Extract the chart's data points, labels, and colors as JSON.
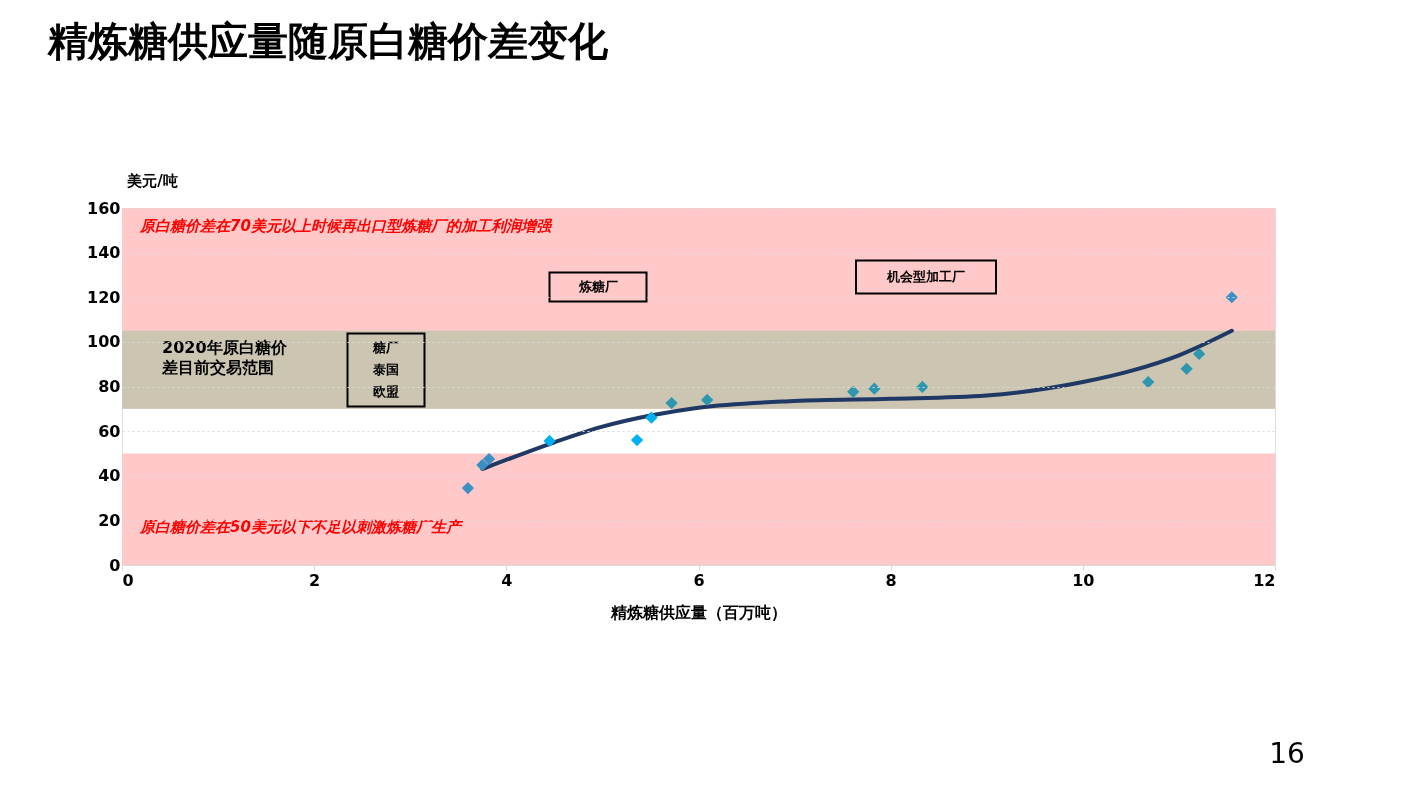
{
  "chart_data": {
    "type": "scatter",
    "title": "精炼糖供应量随原白糖价差变化",
    "xlabel": "精炼糖供应量（百万吨）",
    "ylabel": "美元/吨",
    "xlim": [
      0,
      12
    ],
    "xticks": [
      0,
      2,
      4,
      6,
      8,
      10,
      12
    ],
    "ylim": [
      0,
      160
    ],
    "yticks": [
      0,
      20,
      40,
      60,
      80,
      100,
      120,
      140,
      160
    ],
    "grid": "y",
    "marker": "diamond",
    "bands": [
      {
        "axis": "y",
        "from": 70,
        "to": 160,
        "color": "#ffc9c9",
        "label": "原白糖价差在70美元以上时候再出口型炼糖厂的加工利润增强"
      },
      {
        "axis": "y",
        "from": 0,
        "to": 50,
        "color": "#ffc9c9",
        "label": "原白糖价差在50美元以下不足以刺激炼糖厂生产"
      },
      {
        "axis": "y",
        "from": 70,
        "to": 105,
        "color": "#cbc5b2",
        "label": "2020年原白糖价差目前交易范围"
      }
    ],
    "series": [
      {
        "x": [
          3.6,
          3.75,
          3.82,
          4.45,
          5.36,
          5.51,
          5.72,
          6.09,
          7.61,
          7.83,
          8.33,
          10.68,
          11.08,
          11.21,
          11.55
        ],
        "values": [
          34.5,
          44.8,
          47.5,
          55.6,
          56,
          66,
          72.6,
          74,
          77.6,
          79,
          79.8,
          82,
          87.9,
          94.6,
          120
        ],
        "colors": [
          "#3a8fc4",
          "#3a8fc4",
          "#3a8fc4",
          "#00b0f0",
          "#00b0f0",
          "#00b0f0",
          "#2e97b0",
          "#2e97b0",
          "#2e97b0",
          "#2e97b0",
          "#2e97b0",
          "#2e97b0",
          "#2e97b0",
          "#2e97b0",
          "#3a8fc4"
        ]
      },
      {
        "type": "line",
        "marker": "none",
        "color": "#1f3864",
        "x": [
          3.75,
          4.5,
          5,
          5.5,
          6,
          7,
          8,
          9,
          10,
          10.5,
          11,
          11.55
        ],
        "values": [
          43,
          55,
          62,
          67,
          70.5,
          73.5,
          74.5,
          76,
          82,
          87,
          94,
          105
        ]
      }
    ],
    "annotations": [
      "糖厂泰国欧盟",
      "炼糖厂",
      "机会型加工厂",
      "16"
    ]
  }
}
